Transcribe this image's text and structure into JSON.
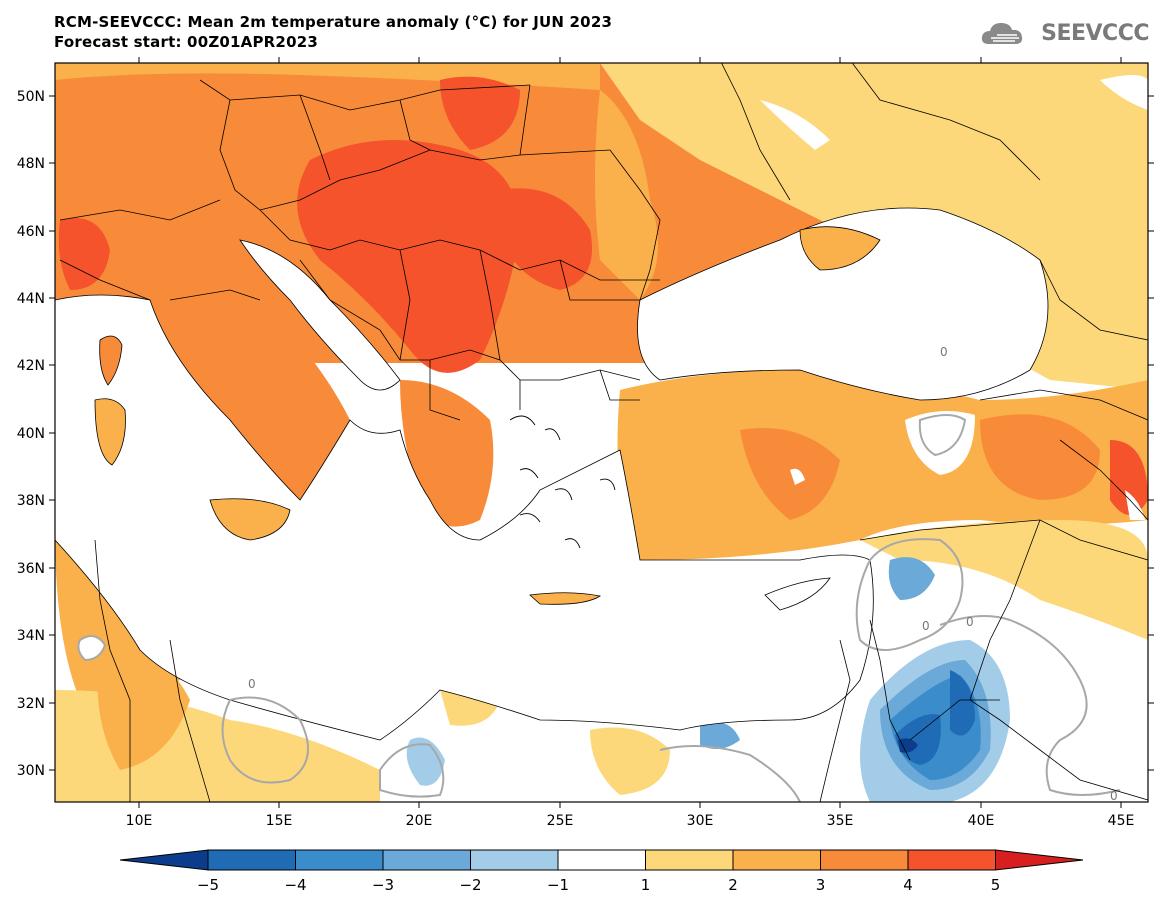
{
  "header": {
    "title": "RCM-SEEVCCC: Mean 2m temperature anomaly (°C) for JUN 2023",
    "subtitle": "Forecast start: 00Z01APR2023"
  },
  "logo": {
    "text": "SEEVCCC",
    "icon": "cloud-logo-icon"
  },
  "map": {
    "lat_labels": [
      "50N",
      "48N",
      "46N",
      "44N",
      "42N",
      "40N",
      "38N",
      "36N",
      "34N",
      "32N",
      "30N"
    ],
    "lon_labels": [
      "10E",
      "15E",
      "20E",
      "25E",
      "30E",
      "35E",
      "40E",
      "45E"
    ],
    "contour_label": "0"
  },
  "colorbar": {
    "colors": [
      "#0b3d8c",
      "#1f6bb5",
      "#3b8ccb",
      "#6aa9d8",
      "#a3cce8",
      "#ffffff",
      "#fdd87a",
      "#fbb14b",
      "#f88b3a",
      "#f4532b",
      "#d81f1f"
    ],
    "labels": [
      "−5",
      "−4",
      "−3",
      "−2",
      "−1",
      "1",
      "2",
      "3",
      "4",
      "5"
    ]
  },
  "colors": {
    "anom_1_2": "#fdd87a",
    "anom_2_3": "#fbb14b",
    "anom_3_4": "#f88b3a",
    "anom_4_5": "#f4532b",
    "anom_neg_1_2": "#a3cce8",
    "anom_neg_2_3": "#6aa9d8",
    "anom_neg_3_4": "#3b8ccb",
    "anom_neg_4_5": "#1f6bb5",
    "anom_neg_5": "#0b3d8c",
    "zero_contour": "#a8a8a8"
  }
}
